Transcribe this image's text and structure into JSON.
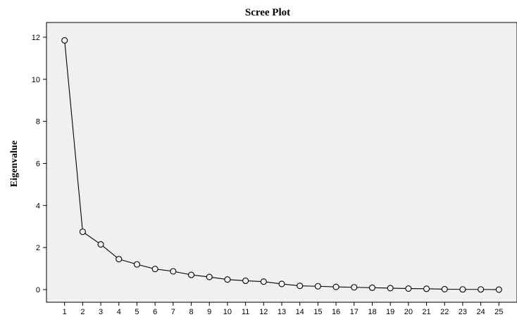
{
  "chart_data": {
    "type": "line",
    "title": "Scree Plot",
    "xlabel": "",
    "ylabel": "Eigenvalue",
    "x": [
      1,
      2,
      3,
      4,
      5,
      6,
      7,
      8,
      9,
      10,
      11,
      12,
      13,
      14,
      15,
      16,
      17,
      18,
      19,
      20,
      21,
      22,
      23,
      24,
      25
    ],
    "series": [
      {
        "values": [
          11.85,
          2.75,
          2.15,
          1.45,
          1.2,
          0.98,
          0.87,
          0.7,
          0.6,
          0.48,
          0.42,
          0.38,
          0.27,
          0.18,
          0.16,
          0.13,
          0.11,
          0.09,
          0.07,
          0.05,
          0.04,
          0.02,
          0.01,
          0.01,
          0.0
        ]
      }
    ],
    "xticks": [
      "1",
      "2",
      "3",
      "4",
      "5",
      "6",
      "7",
      "8",
      "9",
      "10",
      "11",
      "12",
      "13",
      "14",
      "15",
      "16",
      "17",
      "18",
      "19",
      "20",
      "21",
      "22",
      "23",
      "24",
      "25"
    ],
    "yticks": [
      "0",
      "2",
      "4",
      "6",
      "8",
      "10",
      "12"
    ],
    "ylim": [
      -0.6,
      12.7
    ],
    "xlim": [
      0,
      26
    ],
    "grid": false,
    "marker": "open-circle",
    "colors": {
      "plot_bg": "#f0f0f0",
      "line": "#000000",
      "marker_fill": "#f0f0f0"
    }
  }
}
